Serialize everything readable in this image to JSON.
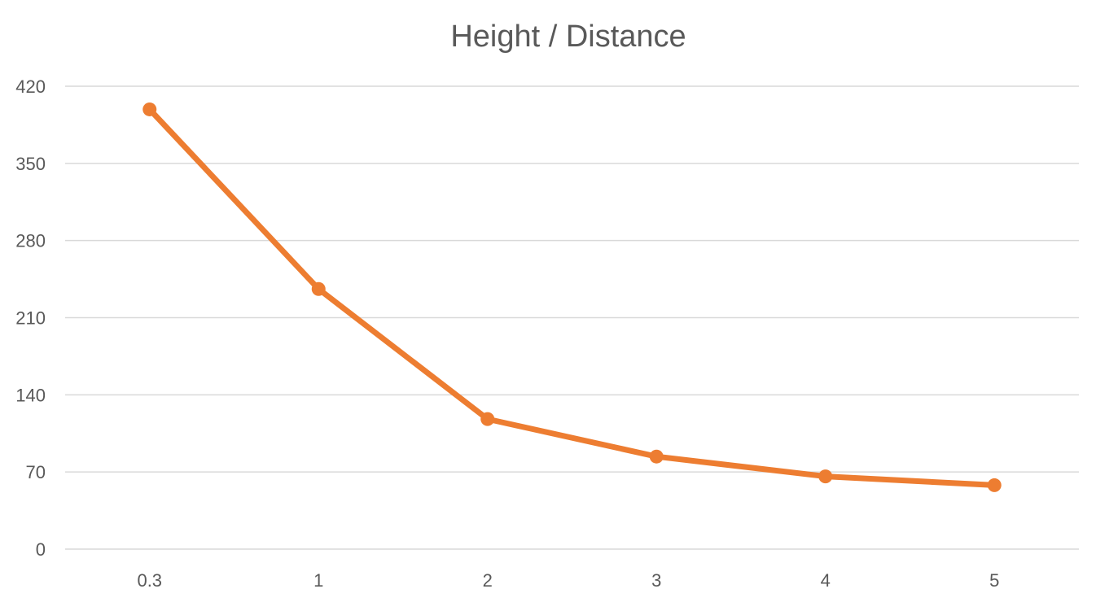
{
  "chart_data": {
    "type": "line",
    "title": "Height / Distance",
    "xlabel": "",
    "ylabel": "",
    "categories": [
      "0.3",
      "1",
      "2",
      "3",
      "4",
      "5"
    ],
    "series": [
      {
        "values": [
          399,
          236,
          118,
          84,
          66,
          58
        ],
        "color": "#ed7d31"
      }
    ],
    "ylim": [
      0,
      420
    ],
    "yticks": [
      0,
      70,
      140,
      210,
      280,
      350,
      420
    ],
    "grid": true,
    "legend": "none",
    "markers": "circle"
  }
}
